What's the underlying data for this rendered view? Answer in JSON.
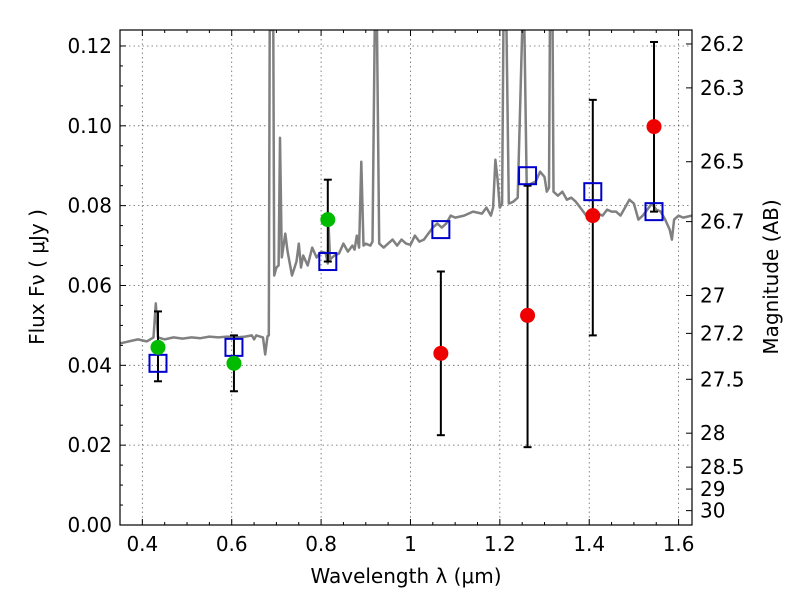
{
  "chart_data": {
    "type": "scatter",
    "xlabel": "Wavelength  λ (μm)",
    "ylabel": "Flux  Fν  ( μJy )",
    "ylabel_right": "Magnitude (AB)",
    "xlim": [
      0.35,
      1.63
    ],
    "ylim": [
      0.0,
      0.124
    ],
    "xticks": [
      0.4,
      0.6,
      0.8,
      1.0,
      1.2,
      1.4,
      1.6
    ],
    "xtick_labels": [
      "0.4",
      "0.6",
      "0.8",
      "1",
      "1.2",
      "1.4",
      "1.6"
    ],
    "yticks": [
      0.0,
      0.02,
      0.04,
      0.06,
      0.08,
      0.1,
      0.12
    ],
    "ytick_labels": [
      "0.00",
      "0.02",
      "0.04",
      "0.06",
      "0.08",
      "0.10",
      "0.12"
    ],
    "right_axis_ticks": [
      {
        "label": "26.2",
        "flux": 0.1205
      },
      {
        "label": "26.3",
        "flux": 0.1095
      },
      {
        "label": "26.5",
        "flux": 0.091
      },
      {
        "label": "26.7",
        "flux": 0.076
      },
      {
        "label": "27",
        "flux": 0.0575
      },
      {
        "label": "27.2",
        "flux": 0.048
      },
      {
        "label": "27.5",
        "flux": 0.0365
      },
      {
        "label": "28",
        "flux": 0.023
      },
      {
        "label": "28.5",
        "flux": 0.0145
      },
      {
        "label": "29",
        "flux": 0.009
      },
      {
        "label": "30",
        "flux": 0.0036
      }
    ],
    "grid": true,
    "series": [
      {
        "kind": "model_spectrum",
        "color": "#808080",
        "points": [
          [
            0.35,
            0.0455
          ],
          [
            0.37,
            0.046
          ],
          [
            0.39,
            0.0465
          ],
          [
            0.41,
            0.046
          ],
          [
            0.425,
            0.047
          ],
          [
            0.43,
            0.0555
          ],
          [
            0.435,
            0.047
          ],
          [
            0.45,
            0.0465
          ],
          [
            0.47,
            0.047
          ],
          [
            0.49,
            0.0467
          ],
          [
            0.51,
            0.047
          ],
          [
            0.53,
            0.0468
          ],
          [
            0.55,
            0.0472
          ],
          [
            0.57,
            0.047
          ],
          [
            0.59,
            0.0472
          ],
          [
            0.61,
            0.047
          ],
          [
            0.63,
            0.0472
          ],
          [
            0.645,
            0.0475
          ],
          [
            0.65,
            0.0465
          ],
          [
            0.655,
            0.0475
          ],
          [
            0.67,
            0.047
          ],
          [
            0.675,
            0.0427
          ],
          [
            0.68,
            0.0473
          ],
          [
            0.683,
            0.0475
          ],
          [
            0.685,
            0.124
          ],
          [
            0.693,
            0.124
          ],
          [
            0.695,
            0.0625
          ],
          [
            0.7,
            0.0645
          ],
          [
            0.705,
            0.065
          ],
          [
            0.708,
            0.097
          ],
          [
            0.712,
            0.067
          ],
          [
            0.72,
            0.073
          ],
          [
            0.725,
            0.0685
          ],
          [
            0.73,
            0.0655
          ],
          [
            0.735,
            0.0625
          ],
          [
            0.745,
            0.066
          ],
          [
            0.75,
            0.0705
          ],
          [
            0.755,
            0.0645
          ],
          [
            0.76,
            0.0675
          ],
          [
            0.77,
            0.065
          ],
          [
            0.78,
            0.0695
          ],
          [
            0.79,
            0.067
          ],
          [
            0.8,
            0.0685
          ],
          [
            0.81,
            0.0682
          ],
          [
            0.815,
            0.0655
          ],
          [
            0.817,
            0.0745
          ],
          [
            0.82,
            0.0665
          ],
          [
            0.83,
            0.0675
          ],
          [
            0.84,
            0.068
          ],
          [
            0.85,
            0.0705
          ],
          [
            0.86,
            0.0685
          ],
          [
            0.87,
            0.07
          ],
          [
            0.875,
            0.069
          ],
          [
            0.88,
            0.0725
          ],
          [
            0.885,
            0.0695
          ],
          [
            0.89,
            0.091
          ],
          [
            0.895,
            0.07
          ],
          [
            0.9,
            0.0705
          ],
          [
            0.91,
            0.07
          ],
          [
            0.915,
            0.071
          ],
          [
            0.92,
            0.124
          ],
          [
            0.925,
            0.124
          ],
          [
            0.93,
            0.0705
          ],
          [
            0.94,
            0.0695
          ],
          [
            0.95,
            0.0705
          ],
          [
            0.96,
            0.0715
          ],
          [
            0.97,
            0.07
          ],
          [
            0.98,
            0.0715
          ],
          [
            0.99,
            0.0705
          ],
          [
            1.0,
            0.0702
          ],
          [
            1.01,
            0.0725
          ],
          [
            1.02,
            0.071
          ],
          [
            1.03,
            0.0715
          ],
          [
            1.04,
            0.073
          ],
          [
            1.05,
            0.0745
          ],
          [
            1.06,
            0.0755
          ],
          [
            1.07,
            0.0745
          ],
          [
            1.08,
            0.0755
          ],
          [
            1.09,
            0.0775
          ],
          [
            1.1,
            0.077
          ],
          [
            1.12,
            0.0775
          ],
          [
            1.14,
            0.0785
          ],
          [
            1.16,
            0.078
          ],
          [
            1.17,
            0.0795
          ],
          [
            1.18,
            0.0775
          ],
          [
            1.185,
            0.0795
          ],
          [
            1.19,
            0.0915
          ],
          [
            1.195,
            0.0865
          ],
          [
            1.2,
            0.0795
          ],
          [
            1.205,
            0.0805
          ],
          [
            1.208,
            0.124
          ],
          [
            1.215,
            0.124
          ],
          [
            1.22,
            0.0805
          ],
          [
            1.23,
            0.081
          ],
          [
            1.24,
            0.082
          ],
          [
            1.25,
            0.124
          ],
          [
            1.255,
            0.124
          ],
          [
            1.26,
            0.085
          ],
          [
            1.27,
            0.0855
          ],
          [
            1.28,
            0.086
          ],
          [
            1.29,
            0.0885
          ],
          [
            1.3,
            0.0872
          ],
          [
            1.305,
            0.0835
          ],
          [
            1.31,
            0.0845
          ],
          [
            1.312,
            0.124
          ],
          [
            1.318,
            0.124
          ],
          [
            1.32,
            0.0835
          ],
          [
            1.33,
            0.0825
          ],
          [
            1.34,
            0.0835
          ],
          [
            1.35,
            0.0815
          ],
          [
            1.36,
            0.082
          ],
          [
            1.37,
            0.081
          ],
          [
            1.38,
            0.0795
          ],
          [
            1.39,
            0.078
          ],
          [
            1.4,
            0.0765
          ],
          [
            1.41,
            0.076
          ],
          [
            1.42,
            0.078
          ],
          [
            1.43,
            0.0775
          ],
          [
            1.44,
            0.079
          ],
          [
            1.45,
            0.0785
          ],
          [
            1.46,
            0.0785
          ],
          [
            1.47,
            0.0775
          ],
          [
            1.48,
            0.0795
          ],
          [
            1.49,
            0.0815
          ],
          [
            1.5,
            0.0805
          ],
          [
            1.51,
            0.0765
          ],
          [
            1.52,
            0.0775
          ],
          [
            1.53,
            0.079
          ],
          [
            1.54,
            0.0805
          ],
          [
            1.55,
            0.079
          ],
          [
            1.56,
            0.0785
          ],
          [
            1.57,
            0.0765
          ],
          [
            1.58,
            0.074
          ],
          [
            1.585,
            0.0715
          ],
          [
            1.59,
            0.0765
          ],
          [
            1.6,
            0.0775
          ],
          [
            1.61,
            0.077
          ],
          [
            1.63,
            0.0775
          ]
        ]
      },
      {
        "kind": "model_photometry",
        "marker": "open-square",
        "color": "#0000cc",
        "points": [
          [
            0.435,
            0.0405
          ],
          [
            0.605,
            0.0445
          ],
          [
            0.815,
            0.066
          ],
          [
            1.068,
            0.074
          ],
          [
            1.262,
            0.0875
          ],
          [
            1.408,
            0.0835
          ],
          [
            1.545,
            0.0785
          ]
        ]
      },
      {
        "kind": "observed_detections",
        "marker": "filled-circle",
        "color": "#00bb00",
        "points": [
          {
            "x": 0.435,
            "y": 0.0445,
            "yerr_low": 0.036,
            "yerr_high": 0.0535
          },
          {
            "x": 0.605,
            "y": 0.0405,
            "yerr_low": 0.0335,
            "yerr_high": 0.0475
          },
          {
            "x": 0.815,
            "y": 0.0765,
            "yerr_low": 0.066,
            "yerr_high": 0.0865
          }
        ]
      },
      {
        "kind": "observed_upper",
        "marker": "filled-circle",
        "color": "#ee0000",
        "points": [
          {
            "x": 1.068,
            "y": 0.043,
            "yerr_low": 0.0225,
            "yerr_high": 0.0635
          },
          {
            "x": 1.262,
            "y": 0.0525,
            "yerr_low": 0.0195,
            "yerr_high": 0.085
          },
          {
            "x": 1.408,
            "y": 0.0775,
            "yerr_low": 0.0475,
            "yerr_high": 0.1065
          },
          {
            "x": 1.545,
            "y": 0.0998,
            "yerr_low": 0.0785,
            "yerr_high": 0.121
          }
        ]
      }
    ]
  }
}
